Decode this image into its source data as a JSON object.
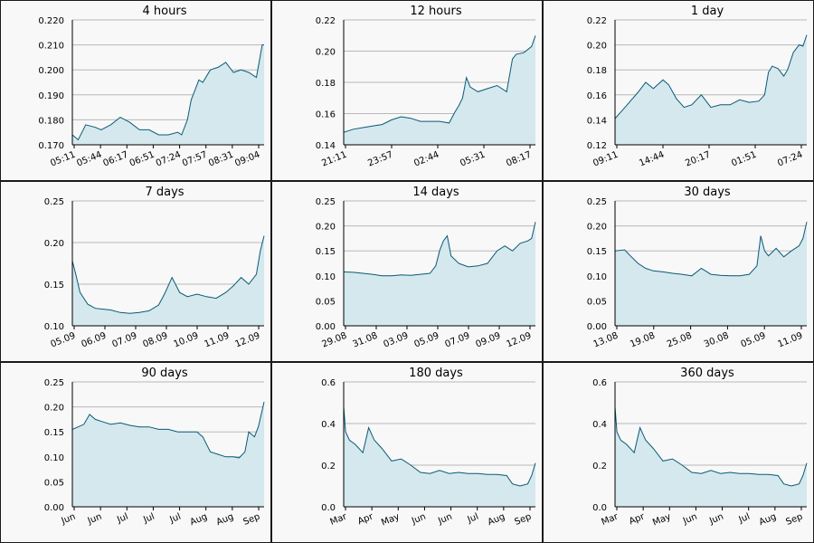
{
  "series_color": "#0b5a77",
  "fill_color": "#d4e8ee",
  "chart_data": [
    {
      "type": "area",
      "title": "4 hours",
      "ylim": [
        0.17,
        0.22
      ],
      "yticks": [
        "0.170",
        "0.180",
        "0.190",
        "0.200",
        "0.210",
        "0.220"
      ],
      "xticks": [
        "05:11",
        "05:44",
        "06:17",
        "06:51",
        "07:24",
        "07:57",
        "08:31",
        "09:04"
      ],
      "x": [
        0,
        3,
        7,
        12,
        15,
        20,
        25,
        30,
        35,
        40,
        45,
        50,
        55,
        57,
        60,
        62,
        64,
        66,
        68,
        72,
        76,
        80,
        84,
        88,
        92,
        96,
        99,
        100
      ],
      "y": [
        0.174,
        0.172,
        0.178,
        0.177,
        0.176,
        0.178,
        0.181,
        0.179,
        0.176,
        0.176,
        0.174,
        0.174,
        0.175,
        0.174,
        0.18,
        0.188,
        0.192,
        0.196,
        0.195,
        0.2,
        0.201,
        0.203,
        0.199,
        0.2,
        0.199,
        0.197,
        0.21,
        0.21
      ]
    },
    {
      "type": "area",
      "title": "12 hours",
      "ylim": [
        0.14,
        0.22
      ],
      "yticks": [
        "0.14",
        "0.16",
        "0.18",
        "0.20",
        "0.22"
      ],
      "xticks": [
        "21:11",
        "23:57",
        "02:44",
        "05:31",
        "08:17"
      ],
      "x": [
        0,
        5,
        10,
        15,
        20,
        25,
        30,
        35,
        40,
        45,
        50,
        55,
        58,
        60,
        62,
        64,
        66,
        70,
        75,
        80,
        85,
        88,
        90,
        94,
        98,
        100
      ],
      "y": [
        0.148,
        0.15,
        0.151,
        0.152,
        0.153,
        0.156,
        0.158,
        0.157,
        0.155,
        0.155,
        0.155,
        0.154,
        0.161,
        0.165,
        0.17,
        0.183,
        0.177,
        0.174,
        0.176,
        0.178,
        0.174,
        0.195,
        0.198,
        0.199,
        0.203,
        0.21
      ]
    },
    {
      "type": "area",
      "title": "1 day",
      "ylim": [
        0.12,
        0.22
      ],
      "yticks": [
        "0.12",
        "0.14",
        "0.16",
        "0.18",
        "0.20",
        "0.22"
      ],
      "xticks": [
        "09:11",
        "14:44",
        "20:17",
        "01:51",
        "07:24"
      ],
      "x": [
        0,
        4,
        8,
        12,
        16,
        20,
        25,
        28,
        32,
        36,
        40,
        45,
        50,
        55,
        60,
        65,
        70,
        75,
        78,
        80,
        82,
        85,
        88,
        90,
        93,
        96,
        98,
        100
      ],
      "y": [
        0.141,
        0.148,
        0.155,
        0.162,
        0.17,
        0.165,
        0.172,
        0.168,
        0.157,
        0.15,
        0.152,
        0.16,
        0.15,
        0.152,
        0.152,
        0.156,
        0.154,
        0.155,
        0.16,
        0.178,
        0.183,
        0.181,
        0.175,
        0.18,
        0.194,
        0.2,
        0.199,
        0.208
      ]
    },
    {
      "type": "area",
      "title": "7 days",
      "ylim": [
        0.1,
        0.25
      ],
      "yticks": [
        "0.10",
        "0.15",
        "0.20",
        "0.25"
      ],
      "xticks": [
        "05.09",
        "06.09",
        "07.09",
        "08.09",
        "10.09",
        "11.09",
        "12.09"
      ],
      "x": [
        0,
        2,
        4,
        8,
        12,
        16,
        20,
        25,
        30,
        35,
        40,
        45,
        48,
        52,
        56,
        60,
        65,
        70,
        75,
        80,
        84,
        88,
        92,
        96,
        98,
        100
      ],
      "y": [
        0.178,
        0.16,
        0.14,
        0.126,
        0.121,
        0.12,
        0.119,
        0.116,
        0.115,
        0.116,
        0.118,
        0.125,
        0.138,
        0.158,
        0.14,
        0.135,
        0.138,
        0.135,
        0.133,
        0.14,
        0.148,
        0.158,
        0.15,
        0.162,
        0.19,
        0.208
      ]
    },
    {
      "type": "area",
      "title": "14 days",
      "ylim": [
        0.0,
        0.25
      ],
      "yticks": [
        "0.00",
        "0.05",
        "0.10",
        "0.15",
        "0.20",
        "0.25"
      ],
      "xticks": [
        "29.08",
        "31.08",
        "03.09",
        "05.09",
        "07.09",
        "09.09",
        "12.09"
      ],
      "x": [
        0,
        5,
        10,
        15,
        20,
        25,
        30,
        35,
        40,
        45,
        48,
        50,
        52,
        54,
        56,
        60,
        65,
        70,
        75,
        78,
        80,
        84,
        88,
        92,
        96,
        98,
        100
      ],
      "y": [
        0.108,
        0.107,
        0.105,
        0.103,
        0.1,
        0.1,
        0.102,
        0.101,
        0.103,
        0.105,
        0.12,
        0.15,
        0.17,
        0.18,
        0.14,
        0.125,
        0.118,
        0.12,
        0.125,
        0.14,
        0.15,
        0.16,
        0.15,
        0.165,
        0.17,
        0.175,
        0.208
      ]
    },
    {
      "type": "area",
      "title": "30 days",
      "ylim": [
        0.0,
        0.25
      ],
      "yticks": [
        "0.00",
        "0.05",
        "0.10",
        "0.15",
        "0.20",
        "0.25"
      ],
      "xticks": [
        "13.08",
        "19.08",
        "25.08",
        "30.08",
        "05.09",
        "11.09"
      ],
      "x": [
        0,
        5,
        8,
        12,
        16,
        20,
        25,
        30,
        35,
        40,
        45,
        50,
        55,
        60,
        65,
        70,
        74,
        76,
        78,
        80,
        84,
        88,
        92,
        96,
        98,
        100
      ],
      "y": [
        0.15,
        0.152,
        0.14,
        0.125,
        0.115,
        0.11,
        0.108,
        0.105,
        0.103,
        0.1,
        0.115,
        0.103,
        0.101,
        0.1,
        0.1,
        0.103,
        0.12,
        0.18,
        0.15,
        0.14,
        0.155,
        0.138,
        0.15,
        0.16,
        0.175,
        0.208
      ]
    },
    {
      "type": "area",
      "title": "90 days",
      "ylim": [
        0.0,
        0.25
      ],
      "yticks": [
        "0.00",
        "0.05",
        "0.10",
        "0.15",
        "0.20",
        "0.25"
      ],
      "xticks": [
        "Jun",
        "Jun",
        "Jul",
        "Jul",
        "Jul",
        "Aug",
        "Aug",
        "Sep"
      ],
      "x": [
        0,
        3,
        6,
        9,
        12,
        16,
        20,
        25,
        30,
        35,
        40,
        45,
        50,
        55,
        60,
        65,
        68,
        72,
        76,
        80,
        84,
        87,
        90,
        92,
        95,
        97,
        100
      ],
      "y": [
        0.155,
        0.16,
        0.165,
        0.185,
        0.175,
        0.17,
        0.165,
        0.168,
        0.163,
        0.16,
        0.16,
        0.155,
        0.155,
        0.15,
        0.15,
        0.15,
        0.14,
        0.11,
        0.105,
        0.1,
        0.1,
        0.098,
        0.11,
        0.15,
        0.14,
        0.16,
        0.21
      ]
    },
    {
      "type": "area",
      "title": "180 days",
      "ylim": [
        0.0,
        0.6
      ],
      "yticks": [
        "0.0",
        "0.2",
        "0.4",
        "0.6"
      ],
      "xticks": [
        "Mar",
        "Apr",
        "May",
        "Jun",
        "Jun",
        "Jul",
        "Aug",
        "Sep"
      ],
      "x": [
        0,
        1,
        3,
        6,
        10,
        13,
        16,
        20,
        25,
        30,
        35,
        40,
        45,
        50,
        55,
        60,
        65,
        70,
        75,
        80,
        85,
        88,
        92,
        96,
        98,
        100
      ],
      "y": [
        0.48,
        0.36,
        0.32,
        0.3,
        0.26,
        0.38,
        0.32,
        0.28,
        0.22,
        0.23,
        0.2,
        0.165,
        0.16,
        0.175,
        0.16,
        0.165,
        0.16,
        0.16,
        0.155,
        0.155,
        0.15,
        0.11,
        0.1,
        0.11,
        0.15,
        0.21
      ]
    },
    {
      "type": "area",
      "title": "360 days",
      "ylim": [
        0.0,
        0.6
      ],
      "yticks": [
        "0.0",
        "0.2",
        "0.4",
        "0.6"
      ],
      "xticks": [
        "Mar",
        "Apr",
        "May",
        "Jun",
        "Jun",
        "Jul",
        "Aug",
        "Sep"
      ],
      "x": [
        0,
        1,
        3,
        6,
        10,
        13,
        16,
        20,
        25,
        30,
        35,
        40,
        45,
        50,
        55,
        60,
        65,
        70,
        75,
        80,
        85,
        88,
        92,
        96,
        98,
        100
      ],
      "y": [
        0.48,
        0.36,
        0.32,
        0.3,
        0.26,
        0.38,
        0.32,
        0.28,
        0.22,
        0.23,
        0.2,
        0.165,
        0.16,
        0.175,
        0.16,
        0.165,
        0.16,
        0.16,
        0.155,
        0.155,
        0.15,
        0.11,
        0.1,
        0.11,
        0.15,
        0.21
      ]
    }
  ]
}
